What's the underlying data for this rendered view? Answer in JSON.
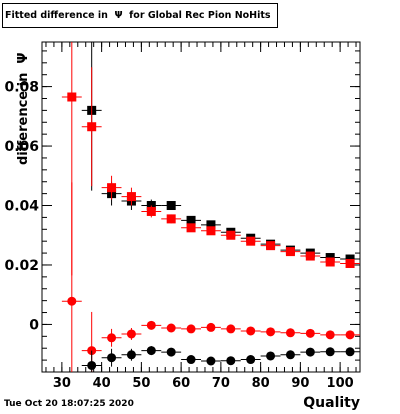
{
  "title": "Fitted difference in  Ψ  for Global Rec Pion NoHits",
  "footer_date": "Tue Oct 20 18:07:25 2020",
  "colors": {
    "red": "#ff0000",
    "black": "#000000"
  },
  "chart_data": {
    "type": "scatter",
    "title": "Fitted difference in  Ψ  for Global Rec Pion NoHits",
    "xlabel": "Quality",
    "ylabel": "difference in  Ψ",
    "xlim": [
      25,
      105
    ],
    "ylim": [
      -0.016,
      0.095
    ],
    "xticks": [
      30,
      40,
      50,
      60,
      70,
      80,
      90,
      100
    ],
    "xtick_labels": [
      "30",
      "40",
      "50",
      "60",
      "70",
      "80",
      "90",
      "100"
    ],
    "yticks": [
      0,
      0.02,
      0.04,
      0.06,
      0.08
    ],
    "ytick_labels": [
      "0",
      "0.02",
      "0.04",
      "0.06",
      "0.08"
    ],
    "x_halfwidth": 2.5,
    "series": [
      {
        "color": "#000000",
        "marker": "square",
        "x": [
          37.5,
          42.5,
          47.5,
          52.5,
          57.5,
          62.5,
          67.5,
          72.5,
          77.5,
          82.5,
          87.5,
          92.5,
          97.5,
          102.5
        ],
        "y": [
          0.072,
          0.044,
          0.0415,
          0.04,
          0.04,
          0.035,
          0.0335,
          0.031,
          0.029,
          0.027,
          0.025,
          0.024,
          0.0225,
          0.022
        ],
        "err": [
          0.027,
          0.004,
          0.003,
          0.002,
          0.0015,
          0.0012,
          0.001,
          0.001,
          0.001,
          0.001,
          0.0008,
          0.0008,
          0.0008,
          0.0008
        ]
      },
      {
        "color": "#ff0000",
        "marker": "square",
        "x": [
          32.5,
          37.5,
          42.5,
          47.5,
          52.5,
          57.5,
          62.5,
          67.5,
          72.5,
          77.5,
          82.5,
          87.5,
          92.5,
          97.5,
          102.5
        ],
        "y": [
          0.0765,
          0.0665,
          0.046,
          0.043,
          0.038,
          0.0355,
          0.0325,
          0.0315,
          0.03,
          0.028,
          0.0265,
          0.0245,
          0.023,
          0.021,
          0.0205
        ],
        "err": [
          0.06,
          0.02,
          0.004,
          0.003,
          0.002,
          0.0015,
          0.0012,
          0.001,
          0.001,
          0.001,
          0.0008,
          0.0008,
          0.0008,
          0.0008,
          0.0008
        ]
      },
      {
        "color": "#ff0000",
        "marker": "circle",
        "x": [
          32.5,
          37.5,
          42.5,
          47.5,
          52.5,
          57.5,
          62.5,
          67.5,
          72.5,
          77.5,
          82.5,
          87.5,
          92.5,
          97.5,
          102.5
        ],
        "y": [
          0.0078,
          -0.0088,
          -0.0045,
          -0.0032,
          -0.0003,
          -0.0012,
          -0.0015,
          -0.001,
          -0.0015,
          -0.0022,
          -0.0025,
          -0.0028,
          -0.003,
          -0.0035,
          -0.0035
        ],
        "err": [
          0.04,
          0.013,
          0.003,
          0.002,
          0.0012,
          0.001,
          0.0008,
          0.0008,
          0.0008,
          0.0008,
          0.0007,
          0.0007,
          0.0007,
          0.0007,
          0.0007
        ]
      },
      {
        "color": "#000000",
        "marker": "circle",
        "x": [
          37.5,
          42.5,
          47.5,
          52.5,
          57.5,
          62.5,
          67.5,
          72.5,
          77.5,
          82.5,
          87.5,
          92.5,
          97.5,
          102.5
        ],
        "y": [
          -0.0138,
          -0.0112,
          -0.0102,
          -0.0088,
          -0.0093,
          -0.0118,
          -0.0123,
          -0.0122,
          -0.0118,
          -0.0106,
          -0.0102,
          -0.0093,
          -0.0092,
          -0.0092
        ],
        "err": [
          0.005,
          0.003,
          0.002,
          0.0015,
          0.0012,
          0.001,
          0.001,
          0.0008,
          0.0008,
          0.0008,
          0.0007,
          0.0007,
          0.0007,
          0.0007
        ]
      }
    ]
  }
}
